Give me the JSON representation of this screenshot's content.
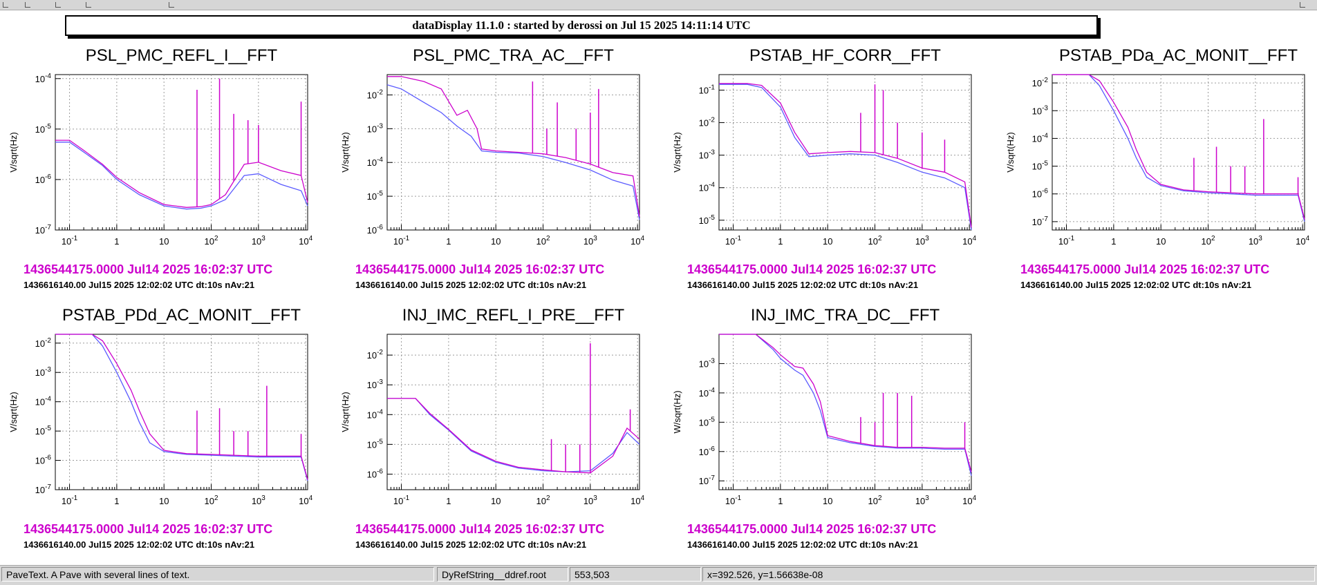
{
  "window": {
    "title": "dataDisplay 11.1.0 : started by derossi on Jul 15 2025 14:11:14 UTC"
  },
  "colors": {
    "current": "#cc00cc",
    "reference": "#5a5aff",
    "grid": "#9a9a9a",
    "axis": "#000000"
  },
  "status_bar": {
    "message": "PaveText. A Pave with several lines of text.",
    "object": "DyRefString__ddref.root",
    "pixel": "553,503",
    "coords": "x=392.526, y=1.56638e-08"
  },
  "chart_data": [
    {
      "type": "line",
      "title": "PSL_PMC_REFL_I__FFT",
      "ylabel": "V/sqrt(Hz)",
      "xscale": "log",
      "yscale": "log",
      "xlim": [
        0.05,
        11000
      ],
      "ylim": [
        1e-07,
        0.00012
      ],
      "xticks": [
        "10^-1",
        "1",
        "10",
        "10^2",
        "10^3",
        "10^4"
      ],
      "yticks": [
        "10^-7",
        "10^-6",
        "10^-5",
        "10^-4"
      ],
      "grid": true,
      "series": [
        {
          "role": "reference",
          "x": [
            0.05,
            0.1,
            0.2,
            0.5,
            1,
            3,
            10,
            30,
            60,
            100,
            200,
            500,
            1000,
            3000,
            8000,
            11000
          ],
          "y": [
            5.5e-06,
            5.5e-06,
            3.5e-06,
            1.9e-06,
            1e-06,
            5e-07,
            3e-07,
            2.6e-07,
            2.7e-07,
            3e-07,
            4e-07,
            1.2e-06,
            1.3e-06,
            8e-07,
            6e-07,
            3e-07
          ]
        },
        {
          "role": "current",
          "x": [
            0.05,
            0.1,
            0.2,
            0.5,
            1,
            3,
            10,
            30,
            60,
            100,
            200,
            500,
            1000,
            3000,
            8000,
            11000
          ],
          "y": [
            6e-06,
            6e-06,
            3.8e-06,
            2e-06,
            1.1e-06,
            5.5e-07,
            3.2e-07,
            2.8e-07,
            2.9e-07,
            3.2e-07,
            5e-07,
            2e-06,
            2.2e-06,
            1.5e-06,
            1.2e-06,
            3.5e-07
          ]
        }
      ],
      "peaks": [
        {
          "x": 50,
          "y": 6e-05
        },
        {
          "x": 150,
          "y": 0.0001
        },
        {
          "x": 300,
          "y": 2e-05
        },
        {
          "x": 600,
          "y": 1.5e-05
        },
        {
          "x": 1000,
          "y": 1.2e-05
        },
        {
          "x": 8000,
          "y": 3.5e-05
        }
      ],
      "annotation": {
        "line1": "1436544175.0000 Jul14 2025 16:02:37 UTC",
        "line2": "1436616140.00 Jul15 2025 12:02:02 UTC dt:10s nAv:21"
      }
    },
    {
      "type": "line",
      "title": "PSL_PMC_TRA_AC__FFT",
      "ylabel": "V/sqrt(Hz)",
      "xscale": "log",
      "yscale": "log",
      "xlim": [
        0.05,
        11000
      ],
      "ylim": [
        1e-06,
        0.04
      ],
      "xticks": [
        "10^-1",
        "1",
        "10",
        "10^2",
        "10^3",
        "10^4"
      ],
      "yticks": [
        "10^-6",
        "10^-5",
        "10^-4",
        "10^-3",
        "10^-2"
      ],
      "grid": true,
      "series": [
        {
          "role": "reference",
          "x": [
            0.05,
            0.1,
            0.3,
            0.7,
            1.5,
            3,
            5,
            10,
            30,
            100,
            300,
            1000,
            3000,
            8000,
            11000
          ],
          "y": [
            0.02,
            0.015,
            0.006,
            0.003,
            0.0012,
            0.0006,
            0.00022,
            0.0002,
            0.00019,
            0.00015,
            0.0001,
            6e-05,
            3e-05,
            2e-05,
            2e-06
          ]
        },
        {
          "role": "current",
          "x": [
            0.05,
            0.1,
            0.3,
            0.7,
            1.5,
            2.5,
            4,
            5,
            10,
            30,
            100,
            300,
            1000,
            3000,
            8000,
            11000
          ],
          "y": [
            0.035,
            0.035,
            0.025,
            0.015,
            0.0025,
            0.0035,
            0.001,
            0.00025,
            0.00022,
            0.0002,
            0.00018,
            0.00014,
            9e-05,
            5e-05,
            4e-05,
            2.5e-06
          ]
        }
      ],
      "peaks": [
        {
          "x": 60,
          "y": 0.025
        },
        {
          "x": 120,
          "y": 0.001
        },
        {
          "x": 200,
          "y": 0.006
        },
        {
          "x": 500,
          "y": 0.001
        },
        {
          "x": 1000,
          "y": 0.003
        },
        {
          "x": 1500,
          "y": 0.015
        }
      ],
      "annotation": {
        "line1": "1436544175.0000 Jul14 2025 16:02:37 UTC",
        "line2": "1436616140.00 Jul15 2025 12:02:02 UTC dt:10s nAv:21"
      }
    },
    {
      "type": "line",
      "title": "PSTAB_HF_CORR__FFT",
      "ylabel": "V/sqrt(Hz)",
      "xscale": "log",
      "yscale": "log",
      "xlim": [
        0.05,
        11000
      ],
      "ylim": [
        5e-06,
        0.3
      ],
      "xticks": [
        "10^-1",
        "1",
        "10",
        "10^2",
        "10^3",
        "10^4"
      ],
      "yticks": [
        "10^-5",
        "10^-4",
        "10^-3",
        "10^-2",
        "10^-1"
      ],
      "grid": true,
      "series": [
        {
          "role": "reference",
          "x": [
            0.05,
            0.2,
            0.4,
            1,
            2,
            4,
            10,
            30,
            100,
            300,
            1000,
            3000,
            8000,
            11000
          ],
          "y": [
            0.15,
            0.15,
            0.12,
            0.03,
            0.0035,
            0.0009,
            0.001,
            0.0011,
            0.001,
            0.0006,
            0.0003,
            0.0002,
            0.0001,
            5e-06
          ]
        },
        {
          "role": "current",
          "x": [
            0.05,
            0.2,
            0.4,
            1,
            2,
            4,
            10,
            30,
            100,
            300,
            1000,
            3000,
            8000,
            11000
          ],
          "y": [
            0.16,
            0.16,
            0.14,
            0.04,
            0.005,
            0.0011,
            0.0012,
            0.0013,
            0.0012,
            0.0008,
            0.0004,
            0.0003,
            0.00015,
            6e-06
          ]
        }
      ],
      "peaks": [
        {
          "x": 50,
          "y": 0.02
        },
        {
          "x": 100,
          "y": 0.15
        },
        {
          "x": 150,
          "y": 0.1
        },
        {
          "x": 300,
          "y": 0.01
        },
        {
          "x": 1000,
          "y": 0.005
        },
        {
          "x": 3000,
          "y": 0.003
        }
      ],
      "annotation": {
        "line1": "1436544175.0000 Jul14 2025 16:02:37 UTC",
        "line2": "1436616140.00 Jul15 2025 12:02:02 UTC dt:10s nAv:21"
      }
    },
    {
      "type": "line",
      "title": "PSTAB_PDa_AC_MONIT__FFT",
      "ylabel": "V/sqrt(Hz)",
      "xscale": "log",
      "yscale": "log",
      "xlim": [
        0.05,
        11000
      ],
      "ylim": [
        5e-08,
        0.02
      ],
      "xticks": [
        "10^-1",
        "1",
        "10",
        "10^2",
        "10^3",
        "10^4"
      ],
      "yticks": [
        "10^-7",
        "10^-6",
        "10^-5",
        "10^-4",
        "10^-3",
        "10^-2"
      ],
      "grid": true,
      "series": [
        {
          "role": "reference",
          "x": [
            0.05,
            0.3,
            0.5,
            1,
            2,
            3,
            5,
            10,
            30,
            100,
            300,
            1000,
            3000,
            8000,
            11000
          ],
          "y": [
            0.02,
            0.02,
            0.008,
            0.001,
            0.0001,
            2e-05,
            4e-06,
            2e-06,
            1.3e-06,
            1.1e-06,
            1e-06,
            9e-07,
            9e-07,
            9e-07,
            1e-07
          ]
        },
        {
          "role": "current",
          "x": [
            0.05,
            0.3,
            0.5,
            1,
            2,
            3,
            5,
            10,
            30,
            100,
            300,
            1000,
            3000,
            8000,
            11000
          ],
          "y": [
            0.02,
            0.02,
            0.012,
            0.002,
            0.00025,
            4e-05,
            6e-06,
            2.2e-06,
            1.4e-06,
            1.2e-06,
            1.1e-06,
            1e-06,
            1e-06,
            1e-06,
            1.2e-07
          ]
        }
      ],
      "peaks": [
        {
          "x": 50,
          "y": 2e-05
        },
        {
          "x": 150,
          "y": 5e-05
        },
        {
          "x": 300,
          "y": 1e-05
        },
        {
          "x": 600,
          "y": 1e-05
        },
        {
          "x": 1500,
          "y": 0.0005
        },
        {
          "x": 8000,
          "y": 4e-06
        }
      ],
      "annotation": {
        "line1": "1436544175.0000 Jul14 2025 16:02:37 UTC",
        "line2": "1436616140.00 Jul15 2025 12:02:02 UTC dt:10s nAv:21"
      }
    },
    {
      "type": "line",
      "title": "PSTAB_PDd_AC_MONIT__FFT",
      "ylabel": "V/sqrt(Hz)",
      "xscale": "log",
      "yscale": "log",
      "xlim": [
        0.05,
        11000
      ],
      "ylim": [
        1e-07,
        0.02
      ],
      "xticks": [
        "10^-1",
        "1",
        "10",
        "10^2",
        "10^3",
        "10^4"
      ],
      "yticks": [
        "10^-7",
        "10^-6",
        "10^-5",
        "10^-4",
        "10^-3",
        "10^-2"
      ],
      "grid": true,
      "series": [
        {
          "role": "reference",
          "x": [
            0.05,
            0.3,
            0.5,
            1,
            2,
            3,
            5,
            10,
            30,
            100,
            300,
            1000,
            3000,
            8000,
            11000
          ],
          "y": [
            0.02,
            0.02,
            0.008,
            0.001,
            0.0001,
            2e-05,
            4e-06,
            2e-06,
            1.6e-06,
            1.5e-06,
            1.4e-06,
            1.3e-06,
            1.3e-06,
            1.3e-06,
            2e-07
          ]
        },
        {
          "role": "current",
          "x": [
            0.05,
            0.3,
            0.5,
            1,
            2,
            3,
            5,
            10,
            30,
            100,
            300,
            1000,
            3000,
            8000,
            11000
          ],
          "y": [
            0.02,
            0.02,
            0.012,
            0.002,
            0.00025,
            5e-05,
            8e-06,
            2.2e-06,
            1.7e-06,
            1.6e-06,
            1.5e-06,
            1.4e-06,
            1.4e-06,
            1.4e-06,
            2.2e-07
          ]
        }
      ],
      "peaks": [
        {
          "x": 50,
          "y": 5e-05
        },
        {
          "x": 150,
          "y": 6e-05
        },
        {
          "x": 300,
          "y": 1e-05
        },
        {
          "x": 600,
          "y": 1e-05
        },
        {
          "x": 1500,
          "y": 0.00035
        },
        {
          "x": 8000,
          "y": 8e-06
        }
      ],
      "annotation": {
        "line1": "1436544175.0000 Jul14 2025 16:02:37 UTC",
        "line2": "1436616140.00 Jul15 2025 12:02:02 UTC dt:10s nAv:21"
      }
    },
    {
      "type": "line",
      "title": "INJ_IMC_REFL_I_PRE__FFT",
      "ylabel": "V/sqrt(Hz)",
      "xscale": "log",
      "yscale": "log",
      "xlim": [
        0.05,
        11000
      ],
      "ylim": [
        3e-07,
        0.05
      ],
      "xticks": [
        "10^-1",
        "1",
        "10",
        "10^2",
        "10^3",
        "10^4"
      ],
      "yticks": [
        "10^-6",
        "10^-5",
        "10^-4",
        "10^-3",
        "10^-2"
      ],
      "grid": true,
      "series": [
        {
          "role": "reference",
          "x": [
            0.05,
            0.2,
            0.4,
            1,
            3,
            10,
            30,
            100,
            300,
            1000,
            3000,
            6000,
            11000
          ],
          "y": [
            0.00035,
            0.00035,
            0.0001,
            3e-05,
            6e-06,
            2.5e-06,
            1.6e-06,
            1.3e-06,
            1.2e-06,
            1.3e-06,
            5e-06,
            2.5e-05,
            1e-05
          ]
        },
        {
          "role": "current",
          "x": [
            0.05,
            0.2,
            0.4,
            1,
            3,
            10,
            30,
            100,
            300,
            1000,
            3000,
            6000,
            11000
          ],
          "y": [
            0.00035,
            0.00035,
            0.00011,
            3.2e-05,
            6.5e-06,
            2.7e-06,
            1.7e-06,
            1.4e-06,
            1.2e-06,
            1.1e-06,
            4e-06,
            3.5e-05,
            1.5e-05
          ]
        }
      ],
      "peaks": [
        {
          "x": 150,
          "y": 1.5e-05
        },
        {
          "x": 300,
          "y": 1e-05
        },
        {
          "x": 600,
          "y": 1e-05
        },
        {
          "x": 1000,
          "y": 0.025
        },
        {
          "x": 7000,
          "y": 0.00015
        }
      ],
      "annotation": {
        "line1": "1436544175.0000 Jul14 2025 16:02:37 UTC",
        "line2": "1436616140.00 Jul15 2025 12:02:02 UTC dt:10s nAv:21"
      }
    },
    {
      "type": "line",
      "title": "INJ_IMC_TRA_DC__FFT",
      "ylabel": "W/sqrt(Hz)",
      "xscale": "log",
      "yscale": "log",
      "xlim": [
        0.05,
        11000
      ],
      "ylim": [
        5e-08,
        0.01
      ],
      "xticks": [
        "10^-1",
        "1",
        "10",
        "10^2",
        "10^3",
        "10^4"
      ],
      "yticks": [
        "10^-7",
        "10^-6",
        "10^-5",
        "10^-4",
        "10^-3"
      ],
      "grid": true,
      "series": [
        {
          "role": "reference",
          "x": [
            0.05,
            0.3,
            0.7,
            1,
            2,
            3,
            5,
            7,
            10,
            30,
            100,
            300,
            1000,
            3000,
            8000,
            11000
          ],
          "y": [
            0.01,
            0.01,
            0.003,
            0.0015,
            0.0006,
            0.0004,
            0.0001,
            2.5e-05,
            3e-06,
            2e-06,
            1.5e-06,
            1.3e-06,
            1.3e-06,
            1.2e-06,
            1.2e-06,
            1.5e-07
          ]
        },
        {
          "role": "current",
          "x": [
            0.05,
            0.3,
            0.7,
            1,
            2,
            3,
            5,
            7,
            10,
            30,
            100,
            300,
            1000,
            3000,
            8000,
            11000
          ],
          "y": [
            0.01,
            0.01,
            0.0035,
            0.002,
            0.0008,
            0.0007,
            0.0002,
            5e-05,
            3.5e-06,
            2.2e-06,
            1.6e-06,
            1.4e-06,
            1.4e-06,
            1.3e-06,
            1.3e-06,
            2e-07
          ]
        }
      ],
      "peaks": [
        {
          "x": 50,
          "y": 1.5e-05
        },
        {
          "x": 100,
          "y": 1e-05
        },
        {
          "x": 150,
          "y": 0.0001
        },
        {
          "x": 300,
          "y": 0.0001
        },
        {
          "x": 600,
          "y": 8e-05
        },
        {
          "x": 8000,
          "y": 1e-05
        }
      ],
      "annotation": {
        "line1": "1436544175.0000 Jul14 2025 16:02:37 UTC",
        "line2": "1436616140.00 Jul15 2025 12:02:02 UTC dt:10s nAv:21"
      }
    }
  ]
}
